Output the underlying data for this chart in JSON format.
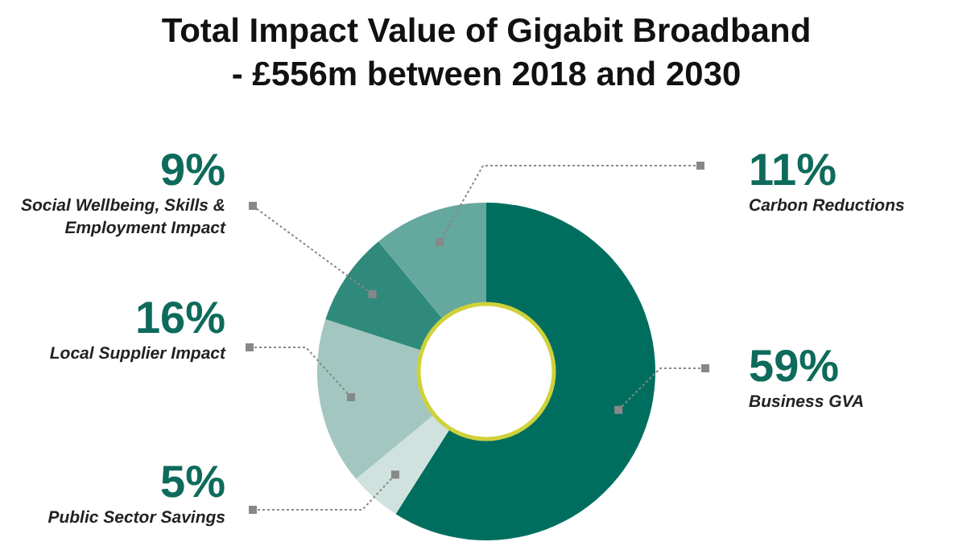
{
  "chart_data": {
    "type": "donut",
    "title": "Total Impact Value of Gigabit Broadband - £556m between 2018 and 2030",
    "categories": [
      "Business GVA",
      "Public Sector Savings",
      "Local Supplier Impact",
      "Social Wellbeing, Skills & Employment Impact",
      "Carbon Reductions"
    ],
    "values": [
      59,
      5,
      16,
      9,
      11
    ],
    "value_labels": [
      "59%",
      "5%",
      "16%",
      "9%",
      "11%"
    ],
    "colors": [
      "#006e5f",
      "#cfe2de",
      "#a3c7c0",
      "#2f8a7b",
      "#65a89e"
    ]
  }
}
